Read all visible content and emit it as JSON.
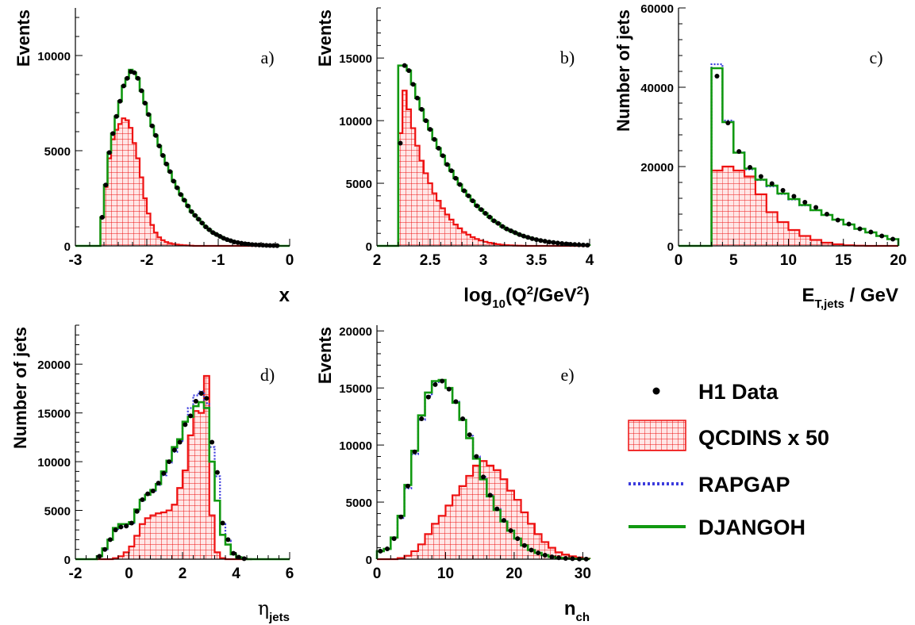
{
  "legend": {
    "data": "H1 Data",
    "qcdins": "QCDINS x 50",
    "rapgap": "RAPGAP",
    "djangoh": "DJANGOH"
  },
  "colors": {
    "data": "#000000",
    "qcdins": "#ee1111",
    "qcdins_fill": "#ffe6e6",
    "rapgap": "#3b3bdd",
    "djangoh": "#119911"
  },
  "chart_data": [
    {
      "type": "bar",
      "panel": "a)",
      "ylabel": "Events",
      "xlabel": "x",
      "xlim": [
        -3,
        0
      ],
      "ylim": [
        0,
        12500
      ],
      "xticks": [
        -3,
        -2,
        -1,
        0
      ],
      "xtick_labels": [
        "-3",
        "-2",
        "-1",
        "0"
      ],
      "yticks": [
        0,
        5000,
        10000
      ],
      "ytick_labels": [
        "0",
        "5000",
        "10000"
      ],
      "bin_edges": [
        -2.65,
        -2.6,
        -2.55,
        -2.5,
        -2.45,
        -2.4,
        -2.35,
        -2.3,
        -2.25,
        -2.2,
        -2.15,
        -2.1,
        -2.05,
        -2.0,
        -1.95,
        -1.9,
        -1.85,
        -1.8,
        -1.75,
        -1.7,
        -1.65,
        -1.6,
        -1.55,
        -1.5,
        -1.45,
        -1.4,
        -1.35,
        -1.3,
        -1.25,
        -1.2,
        -1.15,
        -1.1,
        -1.05,
        -1.0,
        -0.95,
        -0.9,
        -0.85,
        -0.8,
        -0.75,
        -0.7,
        -0.65,
        -0.6,
        -0.55,
        -0.5,
        -0.45,
        -0.4,
        -0.35,
        -0.3,
        -0.25,
        -0.2,
        -0.15
      ],
      "data": [
        1500,
        3200,
        4900,
        5900,
        6800,
        7600,
        8400,
        8800,
        9150,
        9100,
        8800,
        8150,
        7500,
        6900,
        6300,
        5800,
        5250,
        4750,
        4300,
        3900,
        3400,
        3050,
        2700,
        2400,
        2100,
        1800,
        1600,
        1400,
        1200,
        1000,
        850,
        700,
        600,
        500,
        400,
        330,
        270,
        210,
        170,
        140,
        110,
        90,
        70,
        55,
        45,
        35,
        25,
        20,
        15,
        10
      ],
      "djangoh": [
        1500,
        3200,
        4900,
        5900,
        6800,
        7600,
        8400,
        8800,
        9250,
        9100,
        8800,
        8150,
        7500,
        6900,
        6300,
        5800,
        5250,
        4750,
        4300,
        3900,
        3400,
        3050,
        2700,
        2400,
        2100,
        1800,
        1600,
        1400,
        1200,
        1000,
        850,
        700,
        600,
        500,
        400,
        330,
        270,
        210,
        170,
        140,
        110,
        90,
        70,
        55,
        45,
        35,
        25,
        20,
        15,
        10
      ],
      "qcdins": [
        1500,
        3100,
        4600,
        5600,
        6100,
        6400,
        6700,
        6600,
        6200,
        5400,
        4600,
        3600,
        2500,
        1700,
        1100,
        700,
        450,
        300,
        200,
        140,
        100,
        70,
        50,
        30,
        20,
        10,
        0,
        0,
        0,
        0,
        0,
        0,
        0,
        0,
        0,
        0,
        0,
        0,
        0,
        0,
        0,
        0,
        0,
        0,
        0,
        0,
        0,
        0,
        0,
        0
      ]
    },
    {
      "type": "bar",
      "panel": "b)",
      "ylabel": "Events",
      "xlabel": "log",
      "xlabel_sub": "10",
      "xlabel_rest": "(Q",
      "xlabel_sup1": "2",
      "xlabel_mid": "/GeV",
      "xlabel_sup2": "2",
      "xlabel_end": ")",
      "xlim": [
        2,
        4
      ],
      "ylim": [
        0,
        19000
      ],
      "xticks": [
        2,
        2.5,
        3,
        3.5,
        4
      ],
      "xtick_labels": [
        "2",
        "2.5",
        "3",
        "3.5",
        "4"
      ],
      "yticks": [
        0,
        5000,
        10000,
        15000
      ],
      "ytick_labels": [
        "0",
        "5000",
        "10000",
        "15000"
      ],
      "bin_edges": [
        2.2,
        2.24,
        2.28,
        2.32,
        2.36,
        2.4,
        2.44,
        2.48,
        2.52,
        2.56,
        2.6,
        2.64,
        2.68,
        2.72,
        2.76,
        2.8,
        2.84,
        2.88,
        2.92,
        2.96,
        3.0,
        3.04,
        3.08,
        3.12,
        3.16,
        3.2,
        3.24,
        3.28,
        3.32,
        3.36,
        3.4,
        3.44,
        3.48,
        3.52,
        3.56,
        3.6,
        3.64,
        3.68,
        3.72,
        3.76,
        3.8,
        3.84,
        3.88,
        3.92,
        3.96,
        4.0
      ],
      "data": [
        8200,
        14400,
        14000,
        12900,
        11800,
        10900,
        10000,
        9300,
        8500,
        7800,
        7200,
        6500,
        6000,
        5400,
        4900,
        4400,
        4000,
        3600,
        3200,
        2900,
        2600,
        2300,
        2000,
        1800,
        1550,
        1350,
        1200,
        1050,
        900,
        780,
        680,
        580,
        500,
        430,
        370,
        310,
        270,
        230,
        190,
        160,
        130,
        110,
        90,
        70,
        55
      ],
      "djangoh": [
        14400,
        14400,
        14000,
        12900,
        11800,
        10900,
        10000,
        9300,
        8500,
        7800,
        7200,
        6500,
        6000,
        5400,
        4900,
        4400,
        4000,
        3600,
        3200,
        2900,
        2600,
        2300,
        2000,
        1800,
        1550,
        1350,
        1200,
        1050,
        900,
        780,
        680,
        580,
        500,
        430,
        370,
        310,
        270,
        230,
        190,
        160,
        130,
        110,
        90,
        70,
        55
      ],
      "qcdins": [
        9000,
        12400,
        10900,
        9400,
        8000,
        6800,
        5800,
        5000,
        4200,
        3600,
        3000,
        2500,
        2100,
        1700,
        1400,
        1100,
        900,
        700,
        550,
        430,
        330,
        250,
        180,
        130,
        90,
        60,
        40,
        25,
        15,
        10,
        0,
        0,
        0,
        0,
        0,
        0,
        0,
        0,
        0,
        0,
        0,
        0,
        0,
        0,
        0
      ]
    },
    {
      "type": "bar",
      "panel": "c)",
      "ylabel": "Number of jets",
      "xlabel": "E",
      "xlabel_sub": "T,jets",
      "xlabel_rest": " / GeV",
      "xlim": [
        0,
        20
      ],
      "ylim": [
        0,
        60000
      ],
      "xticks": [
        0,
        5,
        10,
        15,
        20
      ],
      "xtick_labels": [
        "0",
        "5",
        "10",
        "15",
        "20"
      ],
      "yticks": [
        0,
        20000,
        40000,
        60000
      ],
      "ytick_labels": [
        "0",
        "20000",
        "40000",
        "60000"
      ],
      "bin_edges": [
        3,
        4,
        5,
        6,
        7,
        8,
        9,
        10,
        11,
        12,
        13,
        14,
        15,
        16,
        17,
        18,
        19,
        20
      ],
      "data": [
        42800,
        31000,
        23800,
        19800,
        17500,
        15700,
        14000,
        12500,
        11000,
        9700,
        8000,
        6500,
        5500,
        4300,
        3500,
        2500,
        1700
      ],
      "djangoh": [
        44800,
        31200,
        23500,
        19500,
        16700,
        15200,
        13200,
        11800,
        10300,
        9000,
        7800,
        6600,
        5400,
        4300,
        3400,
        2500,
        1700
      ],
      "rapgap": [
        45800,
        31600,
        23600,
        19300,
        16600,
        15000,
        13100,
        11700,
        10200,
        9000,
        7800,
        6600,
        5400,
        4300,
        3400,
        2500,
        1700
      ],
      "qcdins": [
        19000,
        20000,
        19000,
        17500,
        13000,
        8500,
        6000,
        4000,
        2500,
        1500,
        800,
        400,
        150,
        50,
        0,
        0,
        0
      ]
    },
    {
      "type": "bar",
      "panel": "d)",
      "ylabel": "Number of jets",
      "xlabel": "η",
      "xlabel_sub": "jets",
      "xlim": [
        -2,
        6
      ],
      "ylim": [
        0,
        24000
      ],
      "xticks": [
        -2,
        0,
        2,
        4,
        6
      ],
      "xtick_labels": [
        "-2",
        "0",
        "2",
        "4",
        "6"
      ],
      "yticks": [
        0,
        5000,
        10000,
        15000,
        20000
      ],
      "ytick_labels": [
        "0",
        "5000",
        "10000",
        "15000",
        "20000"
      ],
      "bin_edges": [
        -1.2,
        -1.0,
        -0.8,
        -0.6,
        -0.4,
        -0.2,
        0.0,
        0.2,
        0.4,
        0.6,
        0.8,
        1.0,
        1.2,
        1.4,
        1.6,
        1.8,
        2.0,
        2.2,
        2.4,
        2.6,
        2.8,
        3.0,
        3.2,
        3.4,
        3.6,
        3.8,
        4.0,
        4.2,
        4.4,
        4.6
      ],
      "data": [
        300,
        1000,
        2000,
        3000,
        3300,
        3400,
        3700,
        4900,
        6100,
        6700,
        7000,
        7800,
        8800,
        10000,
        11200,
        12000,
        13800,
        14700,
        16200,
        17000,
        16500,
        12000,
        8900,
        3700,
        2000,
        600,
        200,
        50,
        0
      ],
      "djangoh": [
        300,
        1100,
        2000,
        3200,
        3600,
        3600,
        3800,
        5100,
        6100,
        6600,
        7100,
        7700,
        9000,
        10100,
        11500,
        12300,
        14100,
        14600,
        15700,
        16100,
        15500,
        10000,
        6000,
        2500,
        1500,
        500,
        200,
        50,
        0
      ],
      "rapgap": [
        300,
        1000,
        2000,
        3000,
        3300,
        3400,
        3700,
        4900,
        6000,
        6600,
        7000,
        7600,
        8600,
        9900,
        11000,
        12000,
        14000,
        15500,
        16800,
        17200,
        16000,
        11500,
        8500,
        3600,
        1900,
        600,
        200,
        50,
        0
      ],
      "qcdins": [
        0,
        0,
        0,
        100,
        300,
        700,
        1300,
        2400,
        3600,
        4200,
        4500,
        4700,
        4800,
        5000,
        5600,
        7300,
        9100,
        12700,
        15200,
        15000,
        18800,
        4500,
        700,
        100,
        0,
        0,
        0,
        0,
        0
      ]
    },
    {
      "type": "bar",
      "panel": "e)",
      "ylabel": "Events",
      "xlabel": "n",
      "xlabel_sub": "ch",
      "xlim": [
        0,
        31
      ],
      "ylim": [
        0,
        20500
      ],
      "xticks": [
        0,
        10,
        20,
        30
      ],
      "xtick_labels": [
        "0",
        "10",
        "20",
        "30"
      ],
      "yticks": [
        0,
        5000,
        10000,
        15000,
        20000
      ],
      "ytick_labels": [
        "0",
        "5000",
        "10000",
        "15000",
        "20000"
      ],
      "bin_edges": [
        0,
        1,
        2,
        3,
        4,
        5,
        6,
        7,
        8,
        9,
        10,
        11,
        12,
        13,
        14,
        15,
        16,
        17,
        18,
        19,
        20,
        21,
        22,
        23,
        24,
        25,
        26,
        27,
        28,
        29,
        30,
        31
      ],
      "data": [
        700,
        900,
        1800,
        3700,
        6400,
        9400,
        12300,
        14200,
        15300,
        15600,
        14900,
        13800,
        12300,
        10900,
        9000,
        7200,
        5600,
        4400,
        3400,
        2500,
        1800,
        1200,
        800,
        550,
        350,
        200,
        120,
        70,
        40,
        20,
        10
      ],
      "djangoh": [
        700,
        900,
        1900,
        3800,
        6500,
        9500,
        12600,
        14600,
        15600,
        15700,
        15000,
        13700,
        12200,
        10600,
        8800,
        7000,
        5500,
        4300,
        3300,
        2500,
        1800,
        1200,
        800,
        550,
        350,
        200,
        120,
        70,
        40,
        20,
        10
      ],
      "rapgap": [
        700,
        900,
        1800,
        3600,
        6200,
        9200,
        12200,
        14300,
        15500,
        15700,
        15000,
        13800,
        12300,
        10800,
        9000,
        7200,
        5600,
        4400,
        3400,
        2500,
        1800,
        1200,
        800,
        550,
        350,
        200,
        120,
        70,
        40,
        20,
        10
      ],
      "qcdins": [
        0,
        0,
        0,
        100,
        300,
        700,
        1300,
        2200,
        3100,
        3800,
        4700,
        5600,
        6400,
        7300,
        8200,
        8600,
        8200,
        7800,
        7000,
        6000,
        5200,
        4100,
        3100,
        2200,
        1500,
        1000,
        600,
        400,
        250,
        150,
        50
      ]
    }
  ]
}
